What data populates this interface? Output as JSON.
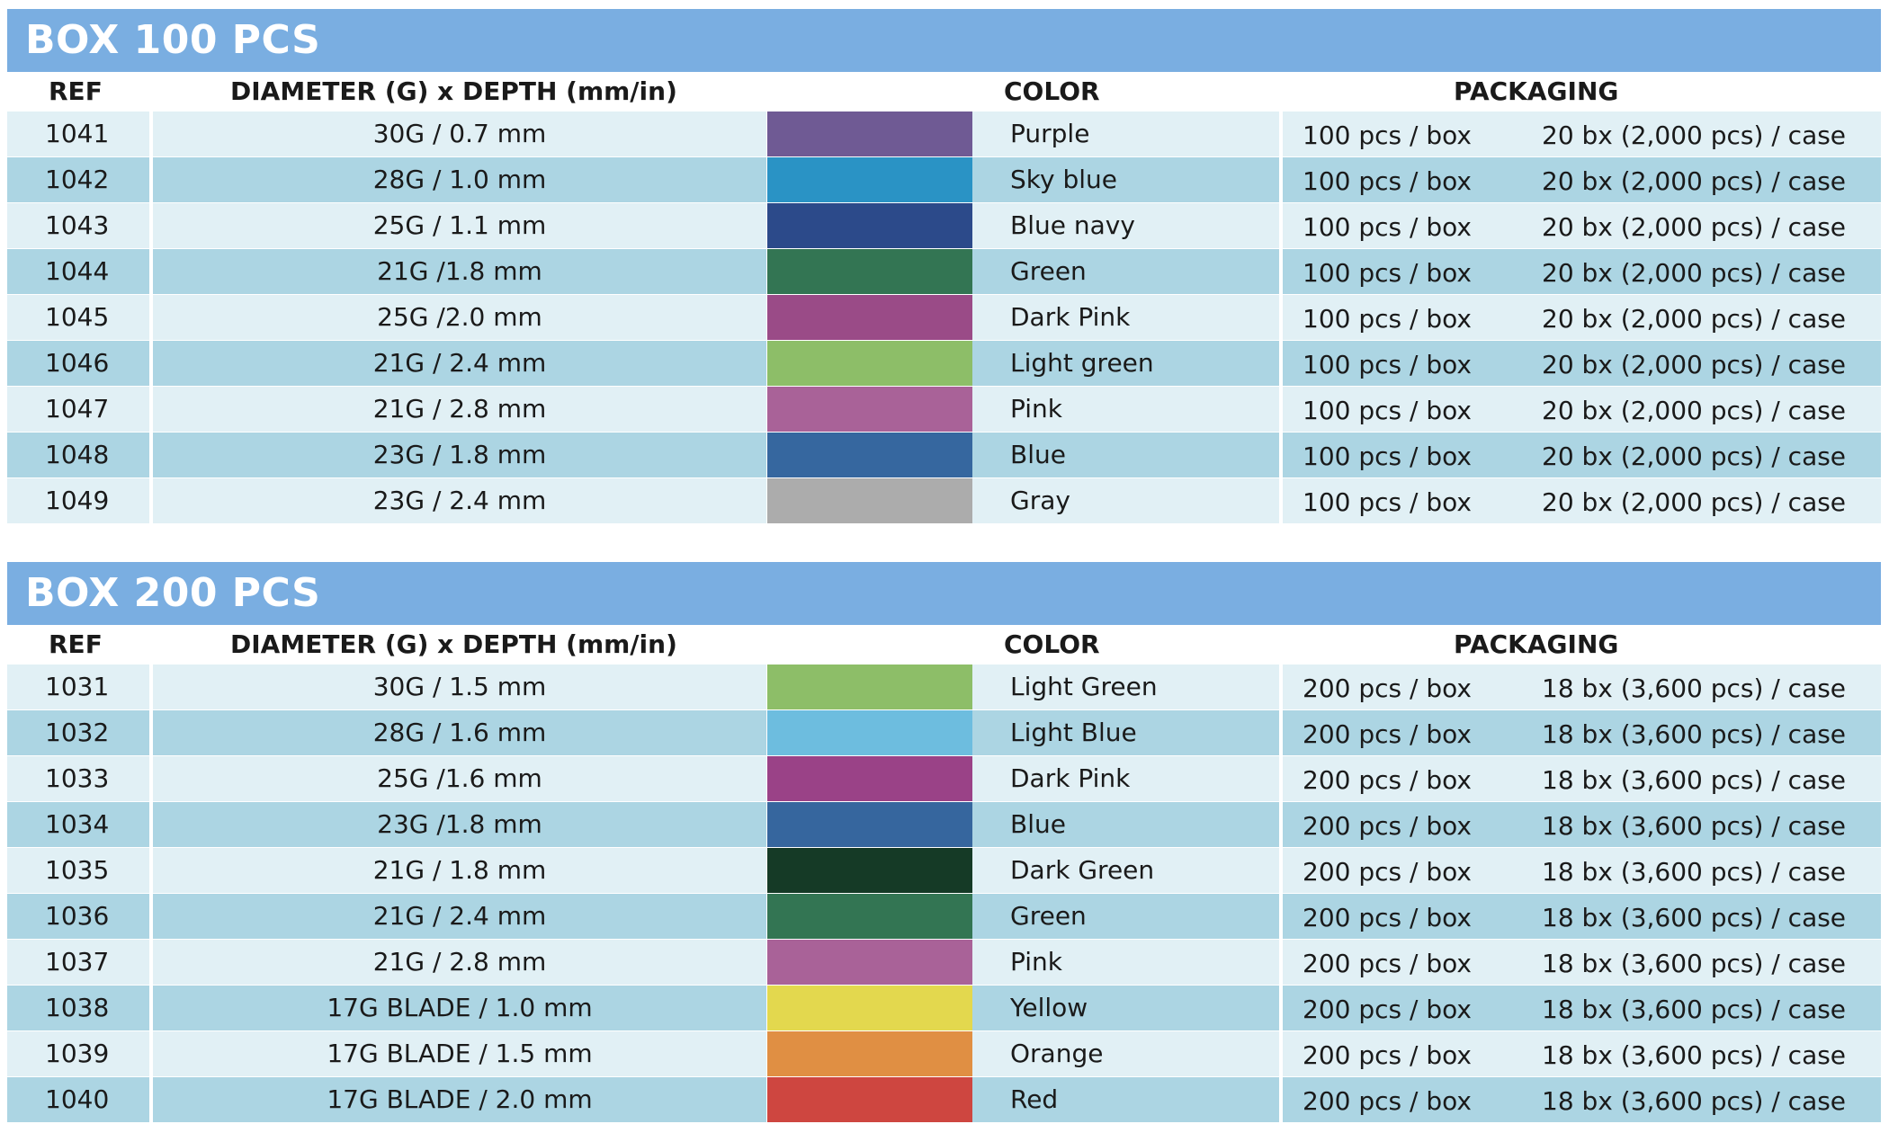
{
  "sections": [
    {
      "title": "BOX 100 PCS",
      "headers": {
        "ref": "REF",
        "diameter": "DIAMETER (G) x DEPTH (mm/in)",
        "color": "COLOR",
        "packaging": "PACKAGING"
      },
      "rows": [
        {
          "ref": "1041",
          "diameter": "30G / 0.7 mm",
          "swatch": "#6f5a94",
          "color": "Purple",
          "box": "100 pcs / box",
          "case": "20 bx (2,000 pcs) / case"
        },
        {
          "ref": "1042",
          "diameter": "28G / 1.0 mm",
          "swatch": "#2a93c5",
          "color": "Sky blue",
          "box": "100 pcs / box",
          "case": "20 bx (2,000 pcs) / case"
        },
        {
          "ref": "1043",
          "diameter": "25G / 1.1 mm",
          "swatch": "#2c4a8a",
          "color": "Blue navy",
          "box": "100 pcs / box",
          "case": "20 bx (2,000 pcs) / case"
        },
        {
          "ref": "1044",
          "diameter": "21G /1.8 mm",
          "swatch": "#337553",
          "color": "Green",
          "box": "100 pcs / box",
          "case": "20 bx (2,000 pcs) / case"
        },
        {
          "ref": "1045",
          "diameter": "25G /2.0 mm",
          "swatch": "#9a4b87",
          "color": "Dark Pink",
          "box": "100 pcs / box",
          "case": "20 bx (2,000 pcs) / case"
        },
        {
          "ref": "1046",
          "diameter": "21G / 2.4 mm",
          "swatch": "#8dbe68",
          "color": "Light green",
          "box": "100 pcs / box",
          "case": "20 bx (2,000 pcs) / case"
        },
        {
          "ref": "1047",
          "diameter": "21G / 2.8 mm",
          "swatch": "#a96298",
          "color": "Pink",
          "box": "100 pcs / box",
          "case": "20 bx (2,000 pcs) / case"
        },
        {
          "ref": "1048",
          "diameter": "23G / 1.8 mm",
          "swatch": "#36679f",
          "color": "Blue",
          "box": "100 pcs / box",
          "case": "20 bx (2,000 pcs) / case"
        },
        {
          "ref": "1049",
          "diameter": "23G / 2.4 mm",
          "swatch": "#acacac",
          "color": "Gray",
          "box": "100 pcs / box",
          "case": "20 bx (2,000 pcs) / case"
        }
      ]
    },
    {
      "title": "BOX 200 PCS",
      "headers": {
        "ref": "REF",
        "diameter": "DIAMETER (G) x DEPTH (mm/in)",
        "color": "COLOR",
        "packaging": "PACKAGING"
      },
      "rows": [
        {
          "ref": "1031",
          "diameter": "30G / 1.5 mm",
          "swatch": "#8dbe68",
          "color": "Light Green",
          "box": "200 pcs / box",
          "case": "18 bx (3,600 pcs) / case"
        },
        {
          "ref": "1032",
          "diameter": "28G / 1.6 mm",
          "swatch": "#6dbddf",
          "color": "Light Blue",
          "box": "200 pcs / box",
          "case": "18 bx (3,600 pcs) / case"
        },
        {
          "ref": "1033",
          "diameter": "25G /1.6 mm",
          "swatch": "#9a4287",
          "color": "Dark Pink",
          "box": "200 pcs / box",
          "case": "18 bx (3,600 pcs) / case"
        },
        {
          "ref": "1034",
          "diameter": "23G /1.8 mm",
          "swatch": "#36669e",
          "color": "Blue",
          "box": "200 pcs / box",
          "case": "18 bx (3,600 pcs) / case"
        },
        {
          "ref": "1035",
          "diameter": "21G / 1.8 mm",
          "swatch": "#153a26",
          "color": "Dark Green",
          "box": "200 pcs / box",
          "case": "18 bx (3,600 pcs) / case"
        },
        {
          "ref": "1036",
          "diameter": "21G / 2.4 mm",
          "swatch": "#337553",
          "color": "Green",
          "box": "200 pcs / box",
          "case": "18 bx (3,600 pcs) / case"
        },
        {
          "ref": "1037",
          "diameter": "21G / 2.8 mm",
          "swatch": "#a96298",
          "color": "Pink",
          "box": "200 pcs / box",
          "case": "18 bx (3,600 pcs) / case"
        },
        {
          "ref": "1038",
          "diameter": "17G BLADE / 1.0 mm",
          "swatch": "#e3d84e",
          "color": "Yellow",
          "box": "200 pcs / box",
          "case": "18 bx (3,600 pcs) / case"
        },
        {
          "ref": "1039",
          "diameter": "17G BLADE / 1.5 mm",
          "swatch": "#e08f43",
          "color": "Orange",
          "box": "200 pcs / box",
          "case": "18 bx (3,600 pcs) / case"
        },
        {
          "ref": "1040",
          "diameter": "17G BLADE / 2.0 mm",
          "swatch": "#ce4640",
          "color": "Red",
          "box": "200 pcs / box",
          "case": "18 bx (3,600 pcs) / case"
        }
      ]
    }
  ]
}
